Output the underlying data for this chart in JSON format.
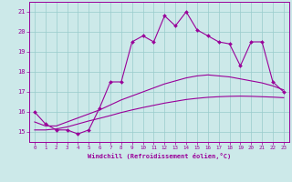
{
  "xlabel": "Windchill (Refroidissement éolien,°C)",
  "xlim": [
    -0.5,
    23.5
  ],
  "ylim": [
    14.5,
    21.5
  ],
  "yticks": [
    15,
    16,
    17,
    18,
    19,
    20,
    21
  ],
  "xticks": [
    0,
    1,
    2,
    3,
    4,
    5,
    6,
    7,
    8,
    9,
    10,
    11,
    12,
    13,
    14,
    15,
    16,
    17,
    18,
    19,
    20,
    21,
    22,
    23
  ],
  "bg_color": "#cce9e9",
  "line_color": "#990099",
  "grid_color": "#99cccc",
  "series1_x": [
    0,
    1,
    2,
    3,
    4,
    5,
    6,
    7,
    8,
    9,
    10,
    11,
    12,
    13,
    14,
    15,
    16,
    17,
    18,
    19,
    20,
    21,
    22,
    23
  ],
  "series1_y": [
    16.0,
    15.4,
    15.1,
    15.1,
    14.9,
    15.1,
    16.2,
    17.5,
    17.5,
    19.5,
    19.8,
    19.5,
    20.8,
    20.3,
    21.0,
    20.1,
    19.8,
    19.5,
    19.4,
    18.3,
    19.5,
    19.5,
    17.5,
    17.0
  ],
  "series2_x": [
    0,
    1,
    2,
    3,
    4,
    5,
    6,
    7,
    8,
    9,
    10,
    11,
    12,
    13,
    14,
    15,
    16,
    17,
    18,
    19,
    20,
    21,
    22,
    23
  ],
  "series2_y": [
    15.5,
    15.3,
    15.3,
    15.5,
    15.7,
    15.9,
    16.1,
    16.35,
    16.6,
    16.8,
    17.0,
    17.2,
    17.4,
    17.55,
    17.7,
    17.8,
    17.85,
    17.8,
    17.75,
    17.65,
    17.55,
    17.45,
    17.3,
    17.1
  ],
  "series3_x": [
    0,
    1,
    2,
    3,
    4,
    5,
    6,
    7,
    8,
    9,
    10,
    11,
    12,
    13,
    14,
    15,
    16,
    17,
    18,
    19,
    20,
    21,
    22,
    23
  ],
  "series3_y": [
    15.1,
    15.1,
    15.15,
    15.25,
    15.4,
    15.55,
    15.68,
    15.82,
    15.97,
    16.1,
    16.22,
    16.33,
    16.44,
    16.53,
    16.62,
    16.68,
    16.73,
    16.76,
    16.78,
    16.79,
    16.78,
    16.76,
    16.74,
    16.71
  ]
}
